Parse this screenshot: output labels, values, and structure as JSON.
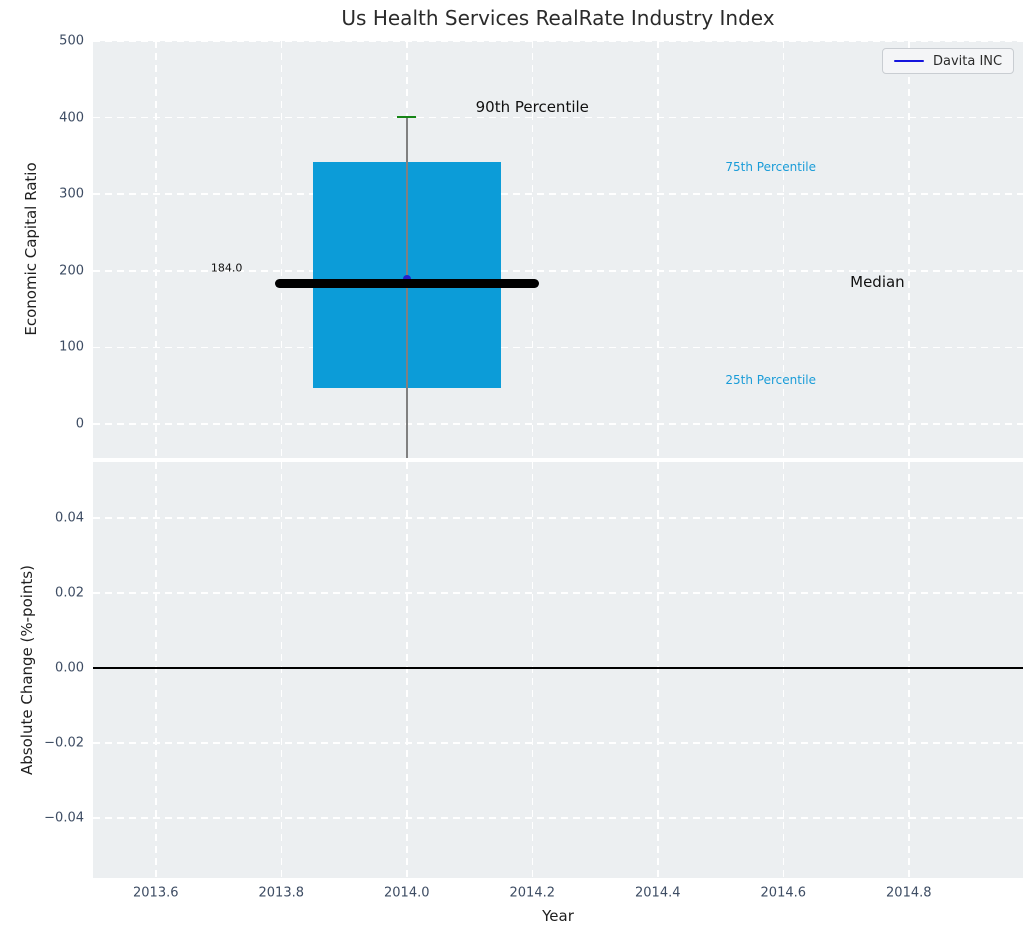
{
  "figure": {
    "title": "Us Health Services RealRate Industry Index"
  },
  "legend": {
    "label": "Davita INC",
    "line_color": "#1515dd",
    "position": "top-right"
  },
  "colors": {
    "panel_bg": "#eceff1",
    "grid": "#ffffff",
    "tick_label": "#3d4c63",
    "axis_label": "#1f1f1f",
    "title": "#2b2b2b",
    "box_fill": "#0c9cd8",
    "median_line": "#000000",
    "p90_cap": "#168516",
    "whisker": "#808080",
    "marker": "#2222cc",
    "zero_line": "#000000",
    "legend_bg": "#f4f5f7",
    "legend_border": "#c9cdd2"
  },
  "x_axis": {
    "label": "Year",
    "lim": [
      2013.5,
      2014.982
    ],
    "ticks": [
      {
        "v": 2013.6,
        "label": "2013.6"
      },
      {
        "v": 2013.8,
        "label": "2013.8"
      },
      {
        "v": 2014.0,
        "label": "2014.0"
      },
      {
        "v": 2014.2,
        "label": "2014.2"
      },
      {
        "v": 2014.4,
        "label": "2014.4"
      },
      {
        "v": 2014.6,
        "label": "2014.6"
      },
      {
        "v": 2014.8,
        "label": "2014.8"
      }
    ]
  },
  "chart_data": [
    {
      "type": "boxplot",
      "title": "Us Health Services RealRate Industry Index",
      "ylabel": "Economic Capital Ratio",
      "ylim": [
        -44.4,
        500
      ],
      "grid": true,
      "yticks": [
        {
          "v": 0,
          "label": "0"
        },
        {
          "v": 100,
          "label": "100"
        },
        {
          "v": 200,
          "label": "200"
        },
        {
          "v": 300,
          "label": "300"
        },
        {
          "v": 400,
          "label": "400"
        },
        {
          "v": 500,
          "label": "500"
        }
      ],
      "box": {
        "x_center": 2014.0,
        "x_span": [
          2013.85,
          2014.15
        ],
        "p25": 47,
        "median": 184.0,
        "p75": 342,
        "p90": 401,
        "median_x_span": [
          2013.79,
          2014.21
        ],
        "p90_cap_x_span": [
          2013.985,
          2014.015
        ],
        "whisker": {
          "x": 2014.0,
          "y_top": 401,
          "y_bottom": -44.4
        }
      },
      "series": [
        {
          "name": "Davita INC",
          "points": [
            {
              "x": 2014.0,
              "y": 184.0
            }
          ]
        }
      ],
      "annotations": [
        {
          "text": "90th Percentile",
          "x": 2014.2,
          "y": 414,
          "color": "#111111",
          "size": 15
        },
        {
          "text": "75th Percentile",
          "x": 2014.58,
          "y": 335,
          "color": "#1a9cd8",
          "size": 12
        },
        {
          "text": "Median",
          "x": 2014.75,
          "y": 186,
          "color": "#111111",
          "size": 15
        },
        {
          "text": "25th Percentile",
          "x": 2014.58,
          "y": 57,
          "color": "#1a9cd8",
          "size": 12
        },
        {
          "text": "184.0",
          "x": 2013.713,
          "y": 204,
          "color": "#111111",
          "size": 11
        }
      ]
    },
    {
      "type": "line",
      "ylabel": "Absolute Change (%-points)",
      "ylim": [
        -0.056,
        0.0549
      ],
      "grid": true,
      "yticks": [
        {
          "v": 0.04,
          "label": "0.04"
        },
        {
          "v": 0.02,
          "label": "0.02"
        },
        {
          "v": 0.0,
          "label": "0.00"
        },
        {
          "v": -0.02,
          "label": "−0.02"
        },
        {
          "v": -0.04,
          "label": "−0.04"
        }
      ],
      "zero_line_y": 0.0,
      "series": [
        {
          "name": "Davita INC",
          "points": []
        }
      ]
    }
  ]
}
